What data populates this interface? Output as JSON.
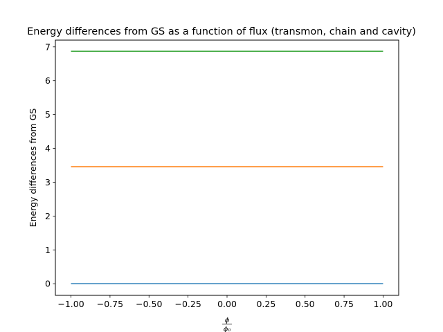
{
  "chart_data": {
    "type": "line",
    "title": "Energy differences from GS as a function of flux (transmon, chain and cavity)",
    "xlabel": {
      "numerator": "ϕ",
      "denominator": "ϕ₀"
    },
    "ylabel": "Energy differences from GS",
    "xlim": [
      -1.1,
      1.1
    ],
    "ylim": [
      -0.343,
      7.2
    ],
    "x_ticks": [
      -1.0,
      -0.75,
      -0.5,
      -0.25,
      0.0,
      0.25,
      0.5,
      0.75,
      1.0
    ],
    "x_tick_labels": [
      "−1.00",
      "−0.75",
      "−0.50",
      "−0.25",
      "0.00",
      "0.25",
      "0.50",
      "0.75",
      "1.00"
    ],
    "y_ticks": [
      0,
      1,
      2,
      3,
      4,
      5,
      6,
      7
    ],
    "y_tick_labels": [
      "0",
      "1",
      "2",
      "3",
      "4",
      "5",
      "6",
      "7"
    ],
    "grid": false,
    "legend": false,
    "x": [
      -1.0,
      1.0
    ],
    "series": [
      {
        "values": [
          0.0,
          0.0
        ],
        "color": "#1f77b4"
      },
      {
        "values": [
          3.46,
          3.46
        ],
        "color": "#ff7f0e"
      },
      {
        "values": [
          6.87,
          6.87
        ],
        "color": "#2ca02c"
      }
    ]
  }
}
